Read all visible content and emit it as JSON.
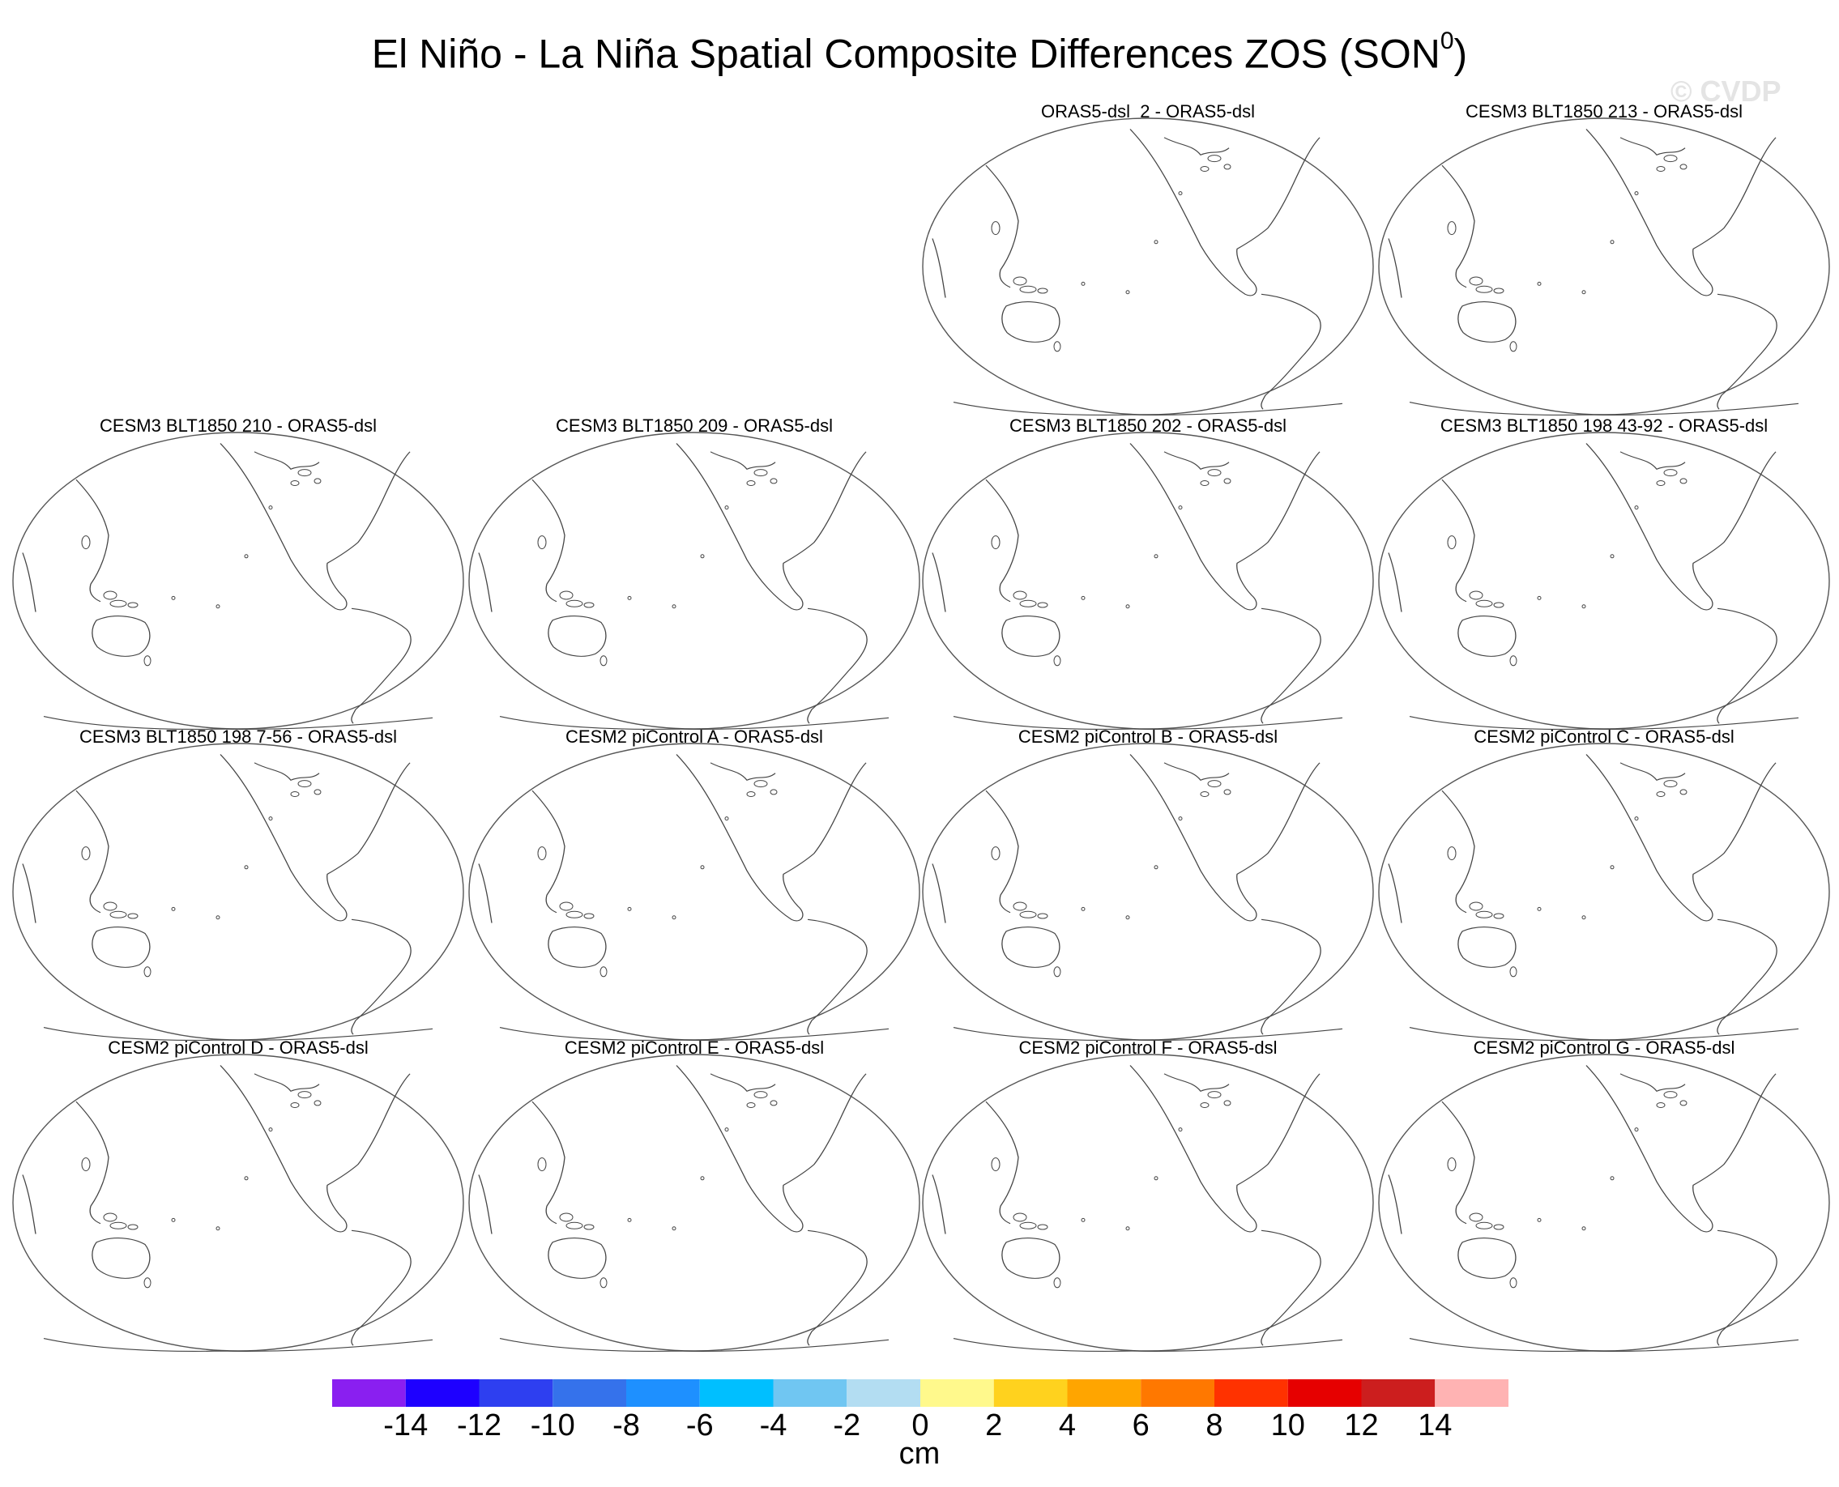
{
  "title": {
    "main": "El Niño - La Niña Spatial Composite Differences ZOS (SON",
    "superscript": "0",
    "close": ")"
  },
  "watermark": "© CVDP",
  "panels": [
    {
      "label": "ORAS5-dsl_2 - ORAS5-dsl"
    },
    {
      "label": "CESM3 BLT1850 213 - ORAS5-dsl"
    },
    {
      "label": "CESM3 BLT1850 210 - ORAS5-dsl"
    },
    {
      "label": "CESM3 BLT1850 209 - ORAS5-dsl"
    },
    {
      "label": "CESM3 BLT1850 202 - ORAS5-dsl"
    },
    {
      "label": "CESM3 BLT1850 198 43-92 - ORAS5-dsl"
    },
    {
      "label": "CESM3 BLT1850 198 7-56 - ORAS5-dsl"
    },
    {
      "label": "CESM2 piControl A - ORAS5-dsl"
    },
    {
      "label": "CESM2 piControl B - ORAS5-dsl"
    },
    {
      "label": "CESM2 piControl C - ORAS5-dsl"
    },
    {
      "label": "CESM2 piControl D - ORAS5-dsl"
    },
    {
      "label": "CESM2 piControl E - ORAS5-dsl"
    },
    {
      "label": "CESM2 piControl F - ORAS5-dsl"
    },
    {
      "label": "CESM2 piControl G - ORAS5-dsl"
    }
  ],
  "colorbar": {
    "colors": [
      "#8a1ff0",
      "#1e00ff",
      "#2e3ff0",
      "#3572eb",
      "#1e90ff",
      "#00bfff",
      "#70c6f2",
      "#b3ddf2",
      "#fff98c",
      "#ffd21e",
      "#ffa500",
      "#ff7800",
      "#ff3200",
      "#e60000",
      "#cc1e1e",
      "#ffb3b3"
    ],
    "labels": [
      "-14",
      "-12",
      "-10",
      "-8",
      "-6",
      "-4",
      "-2",
      "0",
      "2",
      "4",
      "6",
      "8",
      "10",
      "12",
      "14"
    ],
    "units": "cm"
  }
}
